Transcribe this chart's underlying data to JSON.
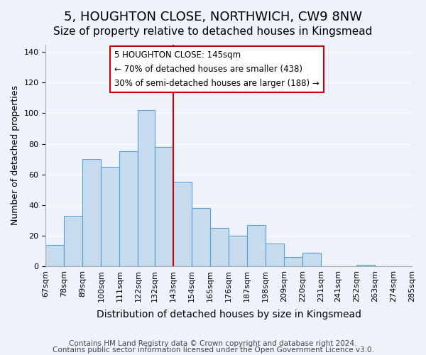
{
  "title": "5, HOUGHTON CLOSE, NORTHWICH, CW9 8NW",
  "subtitle": "Size of property relative to detached houses in Kingsmead",
  "xlabel": "Distribution of detached houses by size in Kingsmead",
  "ylabel": "Number of detached properties",
  "bar_color": "#c8dcf0",
  "bar_edgecolor": "#5a9fd4",
  "vline_color": "#cc0000",
  "vline_x": 143,
  "bins": [
    67,
    78,
    89,
    100,
    111,
    122,
    132,
    143,
    154,
    165,
    176,
    187,
    198,
    209,
    220,
    231,
    241,
    252,
    263,
    274,
    285
  ],
  "counts": [
    14,
    33,
    70,
    65,
    75,
    102,
    78,
    55,
    38,
    25,
    20,
    27,
    15,
    6,
    9,
    0,
    0,
    1,
    0,
    0
  ],
  "tick_labels": [
    "67sqm",
    "78sqm",
    "89sqm",
    "100sqm",
    "111sqm",
    "122sqm",
    "132sqm",
    "143sqm",
    "154sqm",
    "165sqm",
    "176sqm",
    "187sqm",
    "198sqm",
    "209sqm",
    "220sqm",
    "231sqm",
    "241sqm",
    "252sqm",
    "263sqm",
    "274sqm",
    "285sqm"
  ],
  "annotation_title": "5 HOUGHTON CLOSE: 145sqm",
  "annotation_line1": "← 70% of detached houses are smaller (438)",
  "annotation_line2": "30% of semi-detached houses are larger (188) →",
  "annotation_box_color": "#ffffff",
  "annotation_box_edgecolor": "#cc0000",
  "footer1": "Contains HM Land Registry data © Crown copyright and database right 2024.",
  "footer2": "Contains public sector information licensed under the Open Government Licence v3.0.",
  "ylim": [
    0,
    145
  ],
  "yticks": [
    0,
    20,
    40,
    60,
    80,
    100,
    120,
    140
  ],
  "background_color": "#eef2fb",
  "grid_color": "#ffffff",
  "title_fontsize": 13,
  "subtitle_fontsize": 11,
  "xlabel_fontsize": 10,
  "ylabel_fontsize": 9,
  "tick_fontsize": 8,
  "footer_fontsize": 7.5
}
